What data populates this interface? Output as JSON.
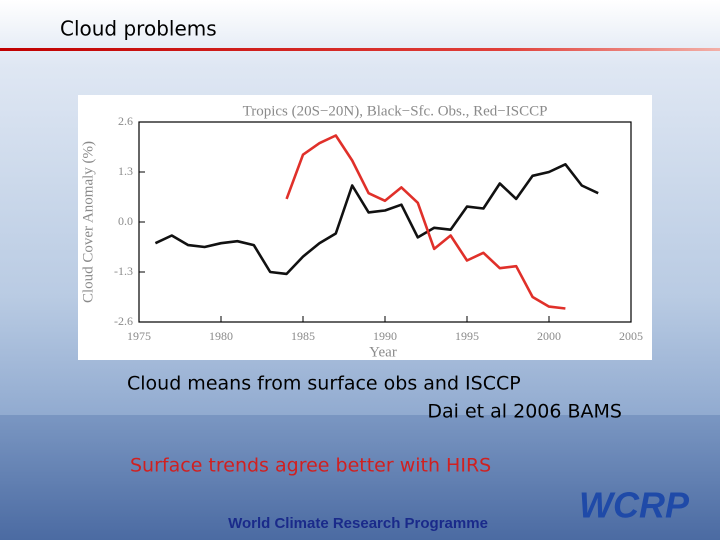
{
  "slide": {
    "title": "Cloud problems",
    "caption": "Cloud means from surface obs and ISCCP",
    "citation": "Dai et al 2006 BAMS",
    "note": "Surface trends agree better with HIRS",
    "footer": "World Climate Research Programme",
    "logo": "WCRP"
  },
  "chart_data": {
    "type": "line",
    "title": "Tropics (20S−20N), Black−Sfc. Obs., Red−ISCCP",
    "x_label": "Year",
    "y_label": "Cloud Cover Anomaly (%)",
    "xlim": [
      1975,
      2005
    ],
    "xticks": [
      1975,
      1980,
      1985,
      1990,
      1995,
      2000,
      2005
    ],
    "ylim": [
      -2.6,
      2.6
    ],
    "yticks": [
      2.6,
      1.3,
      {
        "value": 0,
        "label": "0.0"
      },
      -1.3,
      -2.6
    ],
    "series": [
      {
        "color": "#111111",
        "x": [
          1976,
          1977,
          1978,
          1979,
          1980,
          1981,
          1982,
          1983,
          1984,
          1985,
          1986,
          1987,
          1988,
          1989,
          1990,
          1991,
          1992,
          1993,
          1994,
          1995,
          1996,
          1997,
          1998,
          1999,
          2000,
          2001,
          2002,
          2003
        ],
        "values": [
          -0.55,
          -0.35,
          -0.6,
          -0.65,
          -0.55,
          -0.5,
          -0.6,
          -1.3,
          -1.35,
          -0.9,
          -0.55,
          -0.3,
          0.95,
          0.25,
          0.3,
          0.45,
          -0.4,
          -0.15,
          -0.2,
          0.4,
          0.35,
          1.0,
          0.6,
          1.2,
          1.3,
          1.5,
          0.95,
          0.75
        ]
      },
      {
        "color": "#e0302a",
        "x": [
          1984,
          1985,
          1986,
          1987,
          1988,
          1989,
          1990,
          1991,
          1992,
          1993,
          1994,
          1995,
          1996,
          1997,
          1998,
          1999,
          2000,
          2001
        ],
        "values": [
          0.6,
          1.75,
          2.05,
          2.25,
          1.6,
          0.75,
          0.55,
          0.9,
          0.5,
          -0.7,
          -0.35,
          -1.0,
          -0.8,
          -1.2,
          -1.15,
          -1.95,
          -2.2,
          -2.25
        ]
      }
    ]
  }
}
